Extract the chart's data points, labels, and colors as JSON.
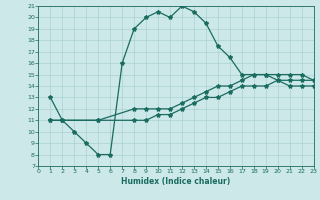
{
  "xlabel": "Humidex (Indice chaleur)",
  "bg_color": "#cce8e8",
  "grid_color": "#aad0d0",
  "line_color": "#1a6b60",
  "xlim": [
    0,
    23
  ],
  "ylim": [
    7,
    21
  ],
  "xticks": [
    0,
    1,
    2,
    3,
    4,
    5,
    6,
    7,
    8,
    9,
    10,
    11,
    12,
    13,
    14,
    15,
    16,
    17,
    18,
    19,
    20,
    21,
    22,
    23
  ],
  "yticks": [
    7,
    8,
    9,
    10,
    11,
    12,
    13,
    14,
    15,
    16,
    17,
    18,
    19,
    20,
    21
  ],
  "curve1_x": [
    1,
    2,
    3,
    4,
    5,
    6,
    7,
    8,
    9,
    10,
    11,
    12,
    13,
    14,
    15,
    16,
    17,
    18,
    19,
    20,
    21,
    22,
    23
  ],
  "curve1_y": [
    13,
    11,
    10,
    9,
    8,
    8,
    16,
    19,
    20,
    20.5,
    20,
    21,
    20.5,
    19.5,
    17.5,
    16.5,
    15,
    15,
    15,
    14.5,
    14,
    14,
    14
  ],
  "curve2_x": [
    1,
    2,
    5,
    8,
    9,
    10,
    11,
    12,
    13,
    14,
    15,
    16,
    17,
    18,
    19,
    20,
    21,
    22,
    23
  ],
  "curve2_y": [
    11,
    11,
    11,
    12,
    12,
    12,
    12,
    12.5,
    13,
    13.5,
    14,
    14,
    14.5,
    15,
    15,
    15,
    15,
    15,
    14.5
  ],
  "curve3_x": [
    1,
    2,
    5,
    8,
    9,
    10,
    11,
    12,
    13,
    14,
    15,
    16,
    17,
    18,
    19,
    20,
    21,
    22,
    23
  ],
  "curve3_y": [
    11,
    11,
    11,
    11,
    11,
    11.5,
    11.5,
    12,
    12.5,
    13,
    13,
    13.5,
    14,
    14,
    14,
    14.5,
    14.5,
    14.5,
    14.5
  ]
}
